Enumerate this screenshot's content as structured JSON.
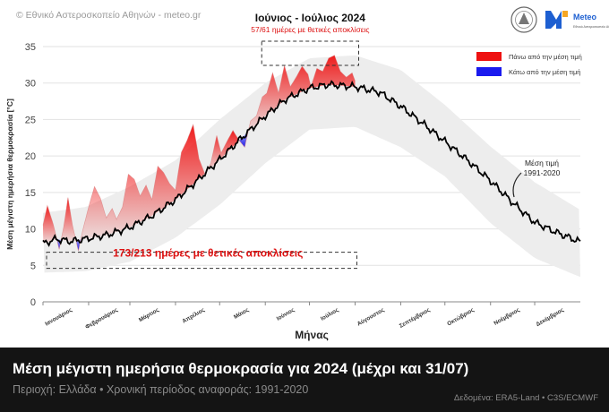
{
  "header": {
    "copyright": "© Εθνικό Αστεροσκοπείο Αθηνών - meteo.gr",
    "logo_text": "Meteo",
    "logo_sub": "Εθνικό Αστεροσκοπείο Αθηνών"
  },
  "footer": {
    "title": "Μέση μέγιστη ημερήσια θερμοκρασία για 2024 (μέχρι και 31/07)",
    "subtitle": "Περιοχή: Ελλάδα • Χρονική περίοδος αναφοράς: 1991-2020",
    "source": "Δεδομένα: ERA5-Land • C3S/ECMWF"
  },
  "colors": {
    "above": "#ee1111",
    "below": "#1a1aee",
    "mean_line": "#000000",
    "band": "#ededed",
    "annotation": "#dd1111",
    "footer_bg": "#141414"
  },
  "chart_data": {
    "type": "line",
    "xlabel": "Μήνας",
    "ylabel": "Μέση μέγιστη ημερήσια θερμοκρασία [°C]",
    "ylim": [
      0,
      35
    ],
    "yticks": [
      0,
      5,
      10,
      15,
      20,
      25,
      30,
      35
    ],
    "months": [
      "Ιανουάριος",
      "Φεβρουάριος",
      "Μάρτιος",
      "Απρίλιος",
      "Μάιος",
      "Ιούνιος",
      "Ιούλιος",
      "Αύγουστος",
      "Σεπτέμβριος",
      "Οκτώβριος",
      "Νοέμβριος",
      "Δεκέμβριος"
    ],
    "legend": {
      "position": "top-right",
      "above": "Πάνω από την μέση τιμή",
      "below": "Κάτω από την μέση τιμή"
    },
    "annotations": {
      "total": "173/213 ημέρες με θετικές αποκλίσεις",
      "jj_title": "Ιούνιος - Ιούλιος 2024",
      "jj_sub": "57/61 ημέρες με θετικές αποκλίσεις",
      "mean_label": "Μέση τιμή",
      "mean_period": "1991-2020"
    },
    "grid": true,
    "series": [
      {
        "name": "Μέση τιμή",
        "x": [
          1,
          10,
          20,
          32,
          45,
          60,
          75,
          91,
          105,
          121,
          135,
          152,
          166,
          182,
          195,
          213,
          230,
          244,
          260,
          274,
          290,
          305,
          320,
          335,
          350,
          366
        ],
        "values": [
          8.0,
          8.6,
          8.3,
          8.7,
          9.2,
          10.2,
          11.8,
          14.0,
          16.5,
          19.5,
          22.3,
          25.5,
          27.8,
          29.3,
          29.8,
          29.5,
          28.7,
          26.8,
          24.3,
          22.0,
          19.3,
          16.6,
          13.6,
          10.9,
          9.5,
          8.2
        ]
      },
      {
        "name": "2024",
        "x": [
          1,
          4,
          8,
          12,
          15,
          18,
          21,
          25,
          28,
          32,
          36,
          40,
          44,
          48,
          51,
          55,
          59,
          63,
          67,
          71,
          75,
          79,
          83,
          87,
          91,
          95,
          99,
          103,
          107,
          111,
          115,
          119,
          122,
          126,
          130,
          134,
          138,
          142,
          146,
          150,
          153,
          157,
          161,
          165,
          169,
          173,
          177,
          181,
          183,
          187,
          191,
          195,
          199,
          203,
          207,
          211,
          213
        ],
        "values": [
          10.5,
          13.2,
          10.6,
          7.2,
          10.2,
          14.3,
          10.5,
          7.0,
          9.8,
          13.0,
          15.8,
          14.2,
          11.5,
          12.8,
          11.3,
          13.0,
          17.5,
          16.8,
          14.5,
          16.0,
          14.0,
          18.6,
          17.7,
          16.2,
          15.3,
          20.5,
          22.2,
          24.3,
          19.6,
          17.5,
          19.0,
          22.8,
          20.4,
          22.0,
          23.5,
          22.2,
          21.2,
          24.8,
          25.5,
          28.1,
          28.6,
          31.4,
          28.6,
          32.4,
          29.5,
          30.8,
          32.3,
          31.2,
          29.5,
          32.0,
          31.6,
          33.4,
          33.8,
          31.6,
          30.8,
          31.4,
          30.3
        ]
      }
    ],
    "band": {
      "x": [
        1,
        30,
        60,
        91,
        121,
        152,
        182,
        213,
        244,
        274,
        305,
        335,
        366
      ],
      "lower": [
        4.0,
        4.2,
        5.5,
        8.8,
        13.3,
        19.0,
        23.6,
        24.0,
        21.2,
        17.2,
        10.8,
        6.0,
        3.4
      ],
      "upper": [
        12.2,
        13.0,
        15.8,
        19.4,
        25.0,
        30.0,
        33.4,
        33.8,
        31.8,
        27.0,
        21.3,
        16.4,
        12.6
      ]
    }
  }
}
